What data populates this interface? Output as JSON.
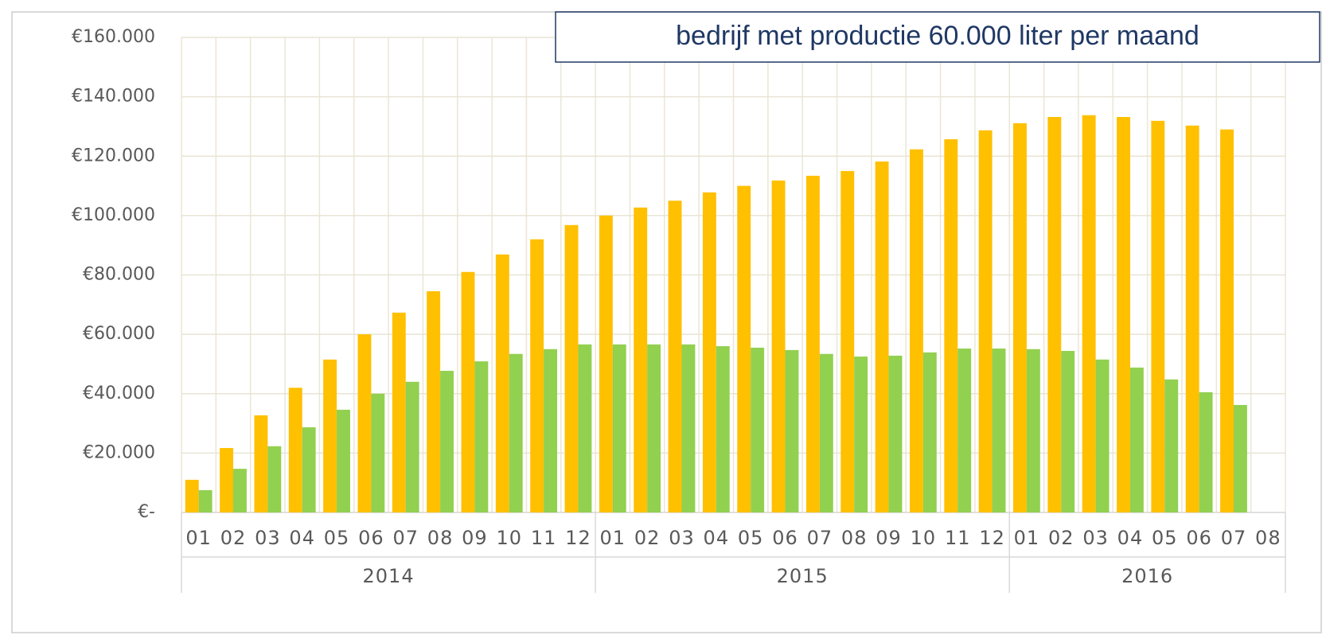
{
  "chart_data": {
    "type": "bar",
    "title": "bedrijf met productie 60.000 liter per maand",
    "groups": [
      {
        "label": "2014",
        "categories": [
          "01",
          "02",
          "03",
          "04",
          "05",
          "06",
          "07",
          "08",
          "09",
          "10",
          "11",
          "12"
        ]
      },
      {
        "label": "2015",
        "categories": [
          "01",
          "02",
          "03",
          "04",
          "05",
          "06",
          "07",
          "08",
          "09",
          "10",
          "11",
          "12"
        ]
      },
      {
        "label": "2016",
        "categories": [
          "01",
          "02",
          "03",
          "04",
          "05",
          "06",
          "07",
          "08"
        ]
      }
    ],
    "series": [
      {
        "color": "#ffc000",
        "values": [
          11000,
          21700,
          32700,
          42000,
          51500,
          60000,
          67300,
          74500,
          81000,
          86900,
          92000,
          96800,
          100000,
          102700,
          105000,
          107800,
          110000,
          111800,
          113400,
          115000,
          118200,
          122300,
          125700,
          128700,
          131100,
          133200,
          133800,
          133200,
          131900,
          130300,
          129000,
          null
        ]
      },
      {
        "color": "#92d050",
        "values": [
          7500,
          14700,
          22300,
          28700,
          34600,
          40000,
          44000,
          47700,
          50900,
          53400,
          55000,
          56600,
          56600,
          56600,
          56600,
          56000,
          55500,
          54700,
          53400,
          52500,
          52800,
          53900,
          55200,
          55200,
          55000,
          54400,
          51500,
          48800,
          44800,
          40500,
          36200,
          null
        ]
      }
    ],
    "ylim": [
      0,
      160000
    ],
    "yticks": [
      {
        "value": 0,
        "label": "€-"
      },
      {
        "value": 20000,
        "label": "€20.000"
      },
      {
        "value": 40000,
        "label": "€40.000"
      },
      {
        "value": 60000,
        "label": "€60.000"
      },
      {
        "value": 80000,
        "label": "€80.000"
      },
      {
        "value": 100000,
        "label": "€100.000"
      },
      {
        "value": 120000,
        "label": "€120.000"
      },
      {
        "value": 140000,
        "label": "€140.000"
      },
      {
        "value": 160000,
        "label": "€160.000"
      }
    ],
    "grid": true
  }
}
